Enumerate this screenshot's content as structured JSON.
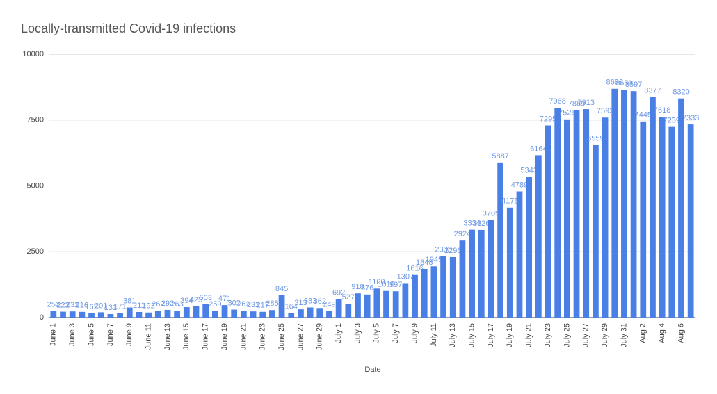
{
  "chart_data": {
    "type": "bar",
    "title": "Locally-transmitted Covid-19 infections",
    "x_label": "Date",
    "categories": [
      "June 1",
      null,
      "June 3",
      null,
      "June 5",
      null,
      "June 7",
      null,
      "June 9",
      null,
      "June 11",
      null,
      "June 13",
      null,
      "June 15",
      null,
      "June 17",
      null,
      "June 19",
      null,
      "June 21",
      null,
      "June 23",
      null,
      "June 25",
      null,
      "June 27",
      null,
      "June 29",
      null,
      "July 1",
      null,
      "July 3",
      null,
      "July 5",
      null,
      "July 7",
      null,
      "July 9",
      null,
      "July 11",
      null,
      "July 13",
      null,
      "July 15",
      null,
      "July 17",
      null,
      "July 19",
      null,
      "July 21",
      null,
      "July 23",
      null,
      "July 25",
      null,
      "July 27",
      null,
      "July 29",
      null,
      "July 31",
      null,
      "Aug 2",
      null,
      "Aug 4",
      null,
      "Aug 6",
      null
    ],
    "values": [
      252,
      222,
      232,
      216,
      162,
      201,
      131,
      171,
      381,
      211,
      192,
      262,
      292,
      263,
      394,
      425,
      503,
      259,
      471,
      302,
      262,
      232,
      217,
      285,
      845,
      164,
      313,
      383,
      362,
      249,
      692,
      527,
      918,
      876,
      1100,
      1010,
      997,
      1307,
      1616,
      1848,
      1945,
      2333,
      2296,
      2924,
      3334,
      3326,
      3705,
      5887,
      4175,
      4789,
      5343,
      6164,
      7295,
      7968,
      7525,
      7869,
      7913,
      6559,
      7593,
      8686,
      8650,
      8597,
      7445,
      8377,
      7618,
      7239,
      8320,
      7333
    ],
    "color": "#4a80e6",
    "ylim": [
      0,
      10000
    ],
    "yticks": [
      0,
      2500,
      5000,
      7500,
      10000
    ],
    "grid": true
  }
}
